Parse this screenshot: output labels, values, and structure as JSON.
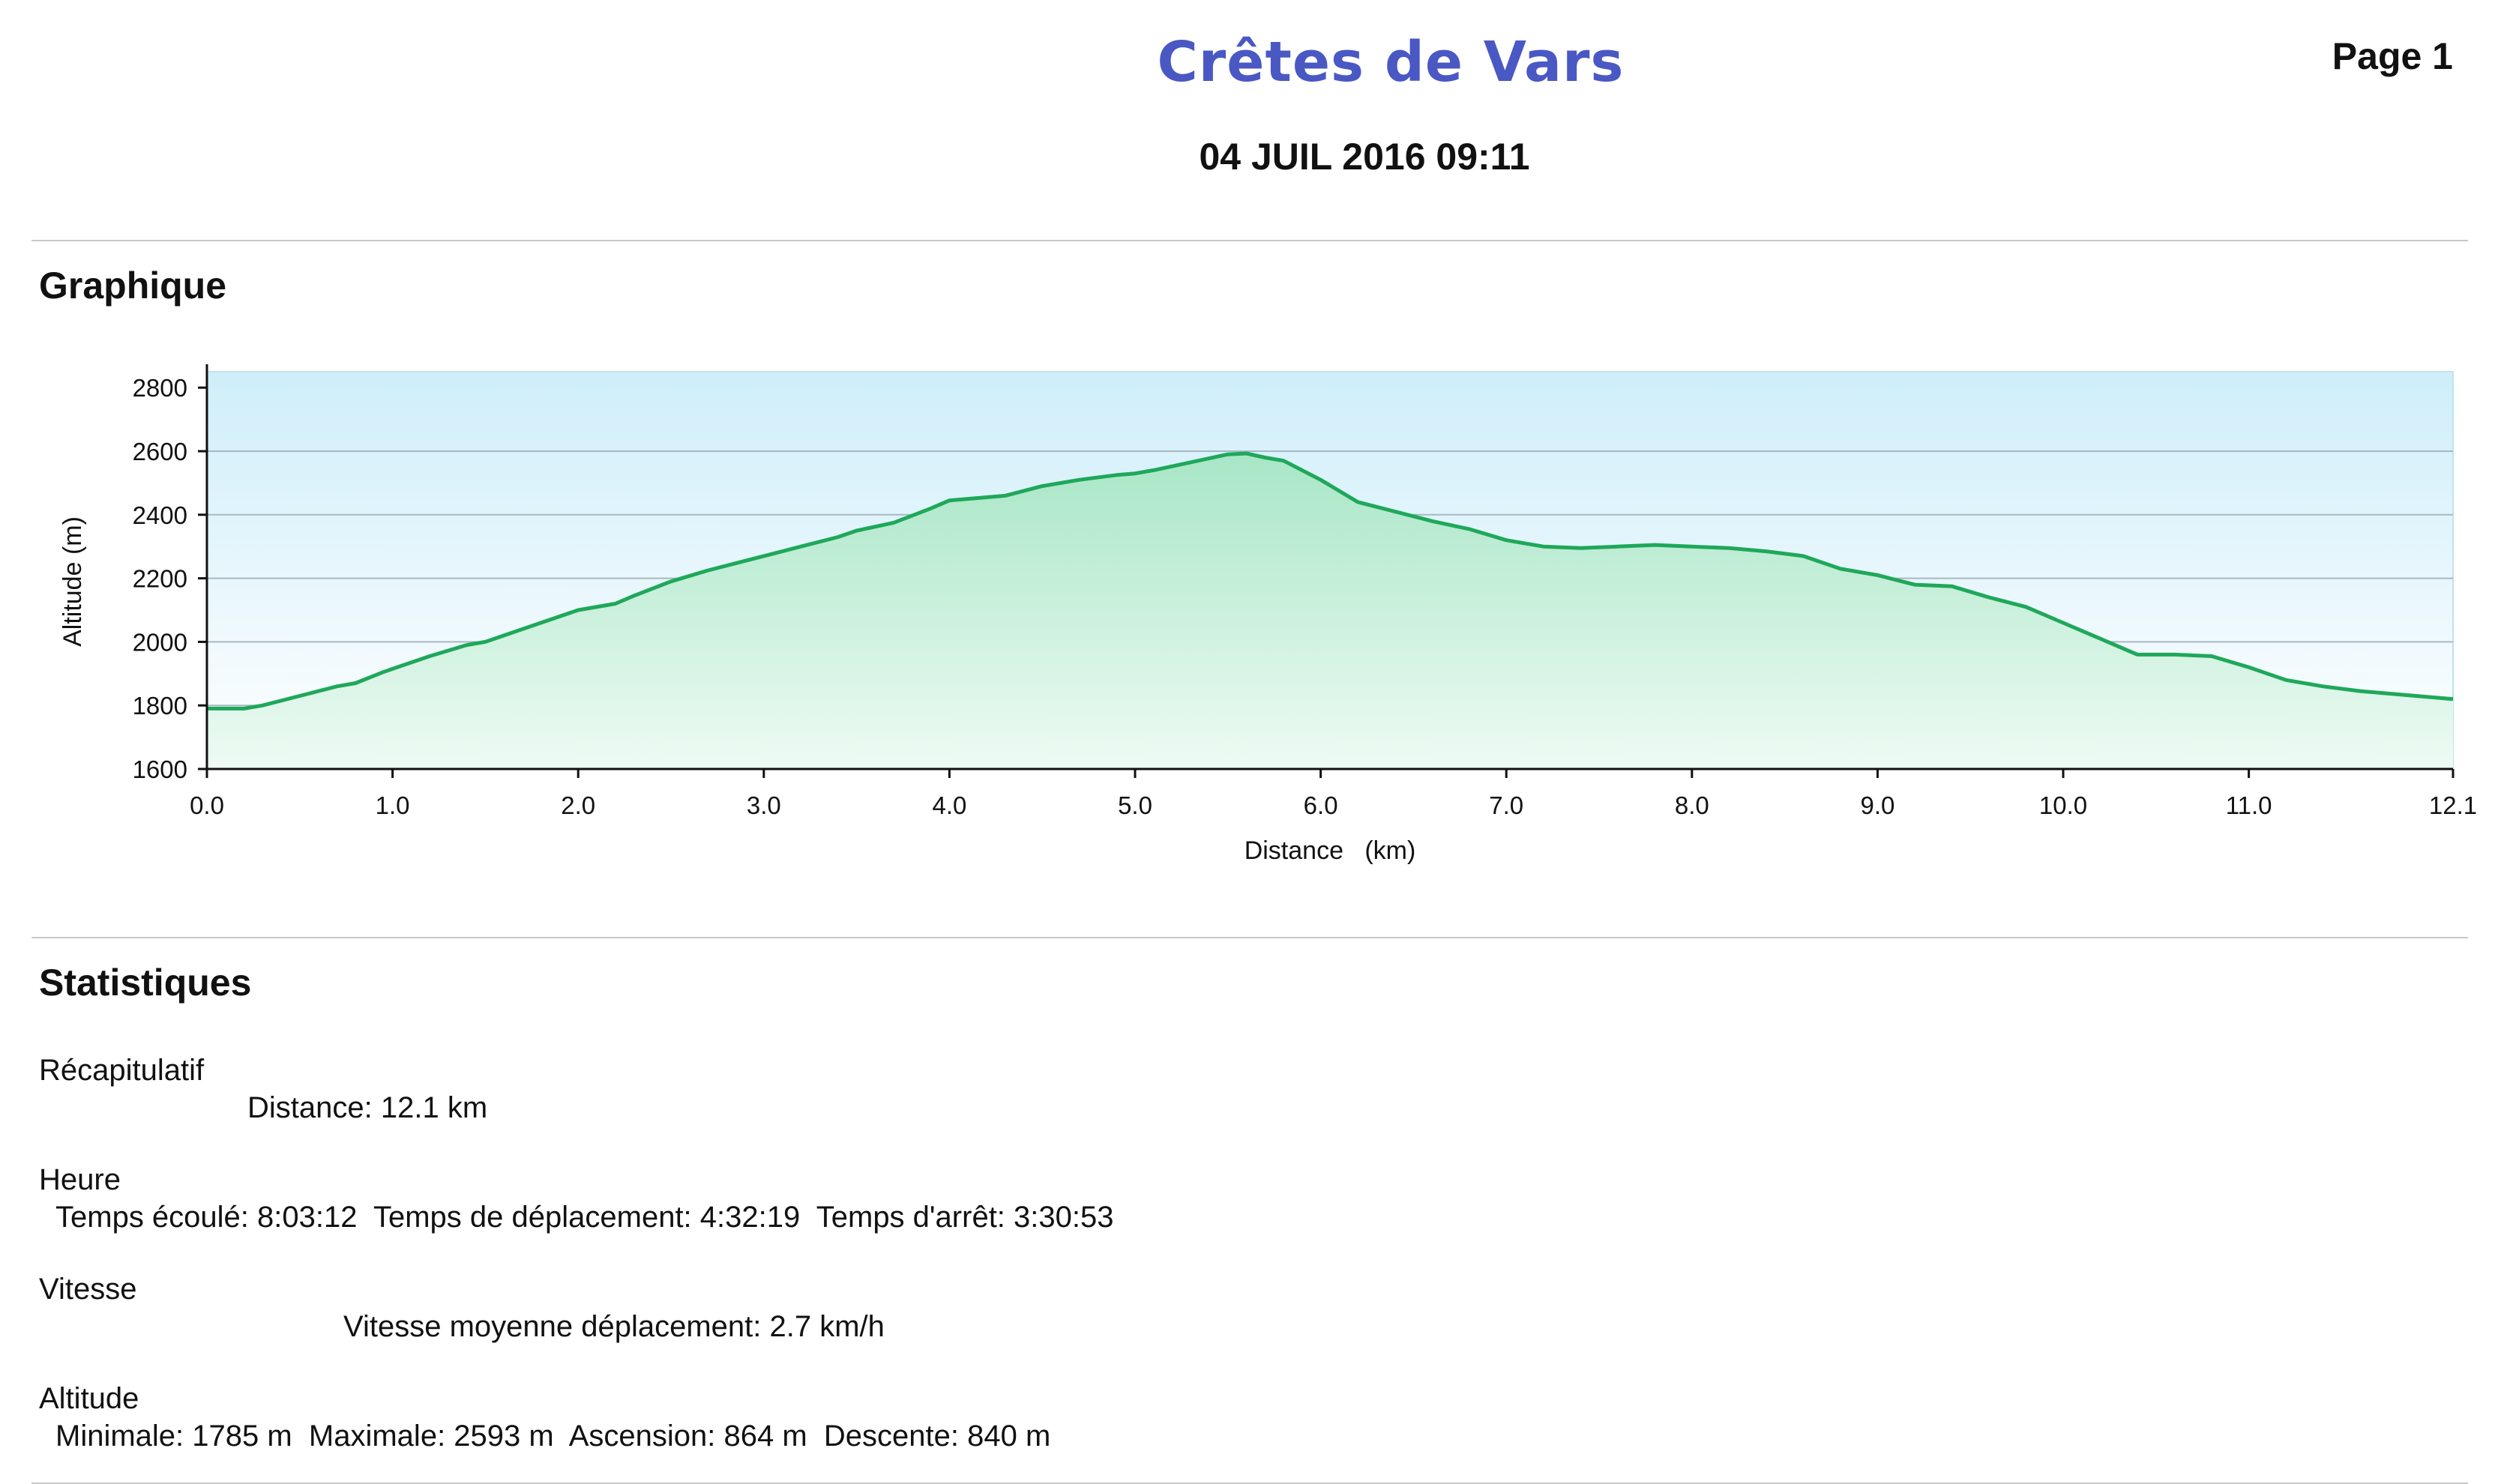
{
  "header": {
    "title": "Crêtes de Vars",
    "page_label": "Page 1",
    "date": "04 JUIL 2016 09:11"
  },
  "sections": {
    "graph_title": "Graphique",
    "stats_title": "Statistiques"
  },
  "stats": {
    "recap": {
      "heading": "Récapitulatif",
      "line": "Distance: 12.1 km"
    },
    "time": {
      "heading": "Heure",
      "line": "Temps écoulé: 8:03:12  Temps de déplacement: 4:32:19  Temps d'arrêt: 3:30:53"
    },
    "speed": {
      "heading": "Vitesse",
      "line": "Vitesse moyenne déplacement: 2.7 km/h"
    },
    "altitude": {
      "heading": "Altitude",
      "line": "Minimale: 1785 m  Maximale: 2593 m  Ascension: 864 m  Descente: 840 m"
    }
  },
  "chart_data": {
    "type": "area",
    "xlabel": "Distance   (km)",
    "ylabel": "Altitude (m)",
    "xlim": [
      0,
      12.1
    ],
    "ylim": [
      1600,
      2850
    ],
    "x_ticks": [
      "0.0",
      "1.0",
      "2.0",
      "3.0",
      "4.0",
      "5.0",
      "6.0",
      "7.0",
      "8.0",
      "9.0",
      "10.0",
      "11.0",
      "12.1"
    ],
    "x_tick_values": [
      0,
      1,
      2,
      3,
      4,
      5,
      6,
      7,
      8,
      9,
      10,
      11,
      12.1
    ],
    "y_ticks": [
      "1600",
      "1800",
      "2000",
      "2200",
      "2400",
      "2600",
      "2800"
    ],
    "y_tick_values": [
      1600,
      1800,
      2000,
      2200,
      2400,
      2600,
      2800
    ],
    "gridlines": [
      1800,
      2000,
      2200,
      2400,
      2600
    ],
    "line_color": "#1fa85a",
    "fill_color": "#9fe0c0",
    "background_color": "#d6f0fb",
    "series": [
      {
        "x": [
          0,
          0.2,
          0.3,
          0.5,
          0.7,
          0.8,
          0.95,
          1.0,
          1.2,
          1.4,
          1.5,
          1.7,
          2.0,
          2.2,
          2.3,
          2.5,
          2.7,
          3.0,
          3.2,
          3.4,
          3.5,
          3.7,
          3.9,
          4.0,
          4.1,
          4.3,
          4.5,
          4.7,
          4.9,
          5.0,
          5.1,
          5.3,
          5.5,
          5.6,
          5.7,
          5.8,
          6.0,
          6.2,
          6.4,
          6.6,
          6.8,
          7.0,
          7.2,
          7.4,
          7.6,
          7.8,
          8.0,
          8.2,
          8.4,
          8.6,
          8.8,
          9.0,
          9.2,
          9.4,
          9.6,
          9.8,
          10.0,
          10.2,
          10.4,
          10.6,
          10.8,
          11.0,
          11.2,
          11.4,
          11.6,
          11.8,
          12.0,
          12.1
        ],
        "y": [
          1790,
          1790,
          1800,
          1830,
          1860,
          1870,
          1905,
          1915,
          1955,
          1990,
          2000,
          2040,
          2100,
          2120,
          2145,
          2190,
          2225,
          2270,
          2300,
          2330,
          2350,
          2375,
          2420,
          2445,
          2450,
          2460,
          2490,
          2510,
          2525,
          2530,
          2540,
          2565,
          2590,
          2593,
          2580,
          2570,
          2510,
          2440,
          2410,
          2380,
          2355,
          2320,
          2300,
          2295,
          2300,
          2305,
          2300,
          2295,
          2285,
          2270,
          2230,
          2210,
          2180,
          2175,
          2140,
          2110,
          2060,
          2010,
          1960,
          1960,
          1955,
          1920,
          1880,
          1860,
          1845,
          1835,
          1825,
          1820
        ]
      }
    ]
  }
}
